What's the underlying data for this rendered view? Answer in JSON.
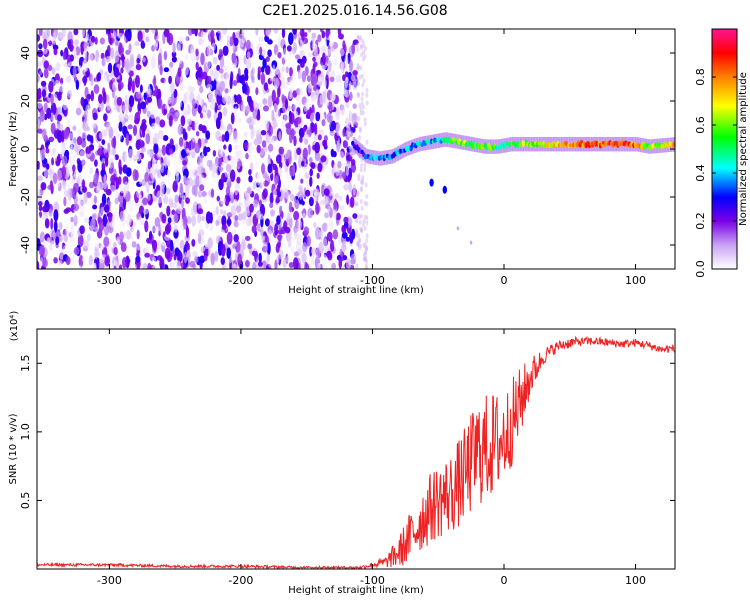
{
  "figure": {
    "title": "C2E1.2025.016.14.56.G08"
  },
  "chart_data": [
    {
      "type": "heatmap",
      "xlabel": "Height of straight line (km)",
      "ylabel": "Frequency (Hz)",
      "xlim": [
        -355,
        130
      ],
      "ylim": [
        -50,
        50
      ],
      "xticks": [
        -300,
        -200,
        -100,
        0,
        100
      ],
      "yticks": [
        -40,
        -20,
        0,
        20,
        40
      ],
      "colorbar": {
        "label": "Normalized spectral amplitude",
        "range": [
          0.0,
          1.0
        ],
        "ticks": [
          "0.0",
          "0.2",
          "0.4",
          "0.6",
          "0.8"
        ],
        "tick_values": [
          0.0,
          0.2,
          0.4,
          0.6,
          0.8
        ],
        "colors": [
          "#ffffff",
          "#7a00e6",
          "#0000ff",
          "#00ffff",
          "#00ff00",
          "#ffff00",
          "#ff8000",
          "#ff0000",
          "#ff1493"
        ]
      },
      "ridge": {
        "description_values": {
          "x": [
            -115,
            -105,
            -95,
            -85,
            -75,
            -65,
            -55,
            -45,
            -35,
            -25,
            -15,
            -5,
            5,
            20,
            40,
            60,
            80,
            100,
            110,
            130
          ],
          "y": [
            2,
            -3,
            -4,
            -3,
            0,
            2,
            3,
            4,
            3,
            2,
            1,
            1,
            2,
            2,
            2,
            2,
            2,
            2,
            1,
            2
          ],
          "amplitude": [
            0.2,
            0.3,
            0.4,
            0.35,
            0.35,
            0.4,
            0.4,
            0.45,
            0.6,
            0.55,
            0.6,
            0.5,
            0.55,
            0.6,
            0.7,
            0.8,
            0.85,
            0.8,
            0.6,
            0.75
          ]
        },
        "branch": {
          "x": [
            -55,
            -45,
            -35,
            -25
          ],
          "y": [
            -14,
            -17,
            -33,
            -39
          ]
        }
      },
      "noise_region_x": [
        -355,
        -112
      ]
    },
    {
      "type": "line",
      "xlabel": "Height of straight line (km)",
      "ylabel": "SNR (10 * v/v)",
      "multiplier_label": "(x10⁴)",
      "xlim": [
        -355,
        130
      ],
      "ylim": [
        0.0,
        1.75
      ],
      "xticks": [
        -300,
        -200,
        -100,
        0,
        100
      ],
      "yticks": [
        0.5,
        1.0,
        1.5
      ],
      "ytick_labels": [
        "0.5",
        "1.0",
        "1.5"
      ],
      "line_color": "#ee2222",
      "series": [
        {
          "x": [
            -355,
            -300,
            -250,
            -200,
            -150,
            -110,
            -100,
            -90,
            -80,
            -70,
            -60,
            -50,
            -40,
            -30,
            -20,
            -10,
            0,
            10,
            20,
            30,
            40,
            50,
            60,
            70,
            80,
            90,
            100,
            110,
            120,
            130
          ],
          "values": [
            0.03,
            0.03,
            0.02,
            0.02,
            0.01,
            0.01,
            0.03,
            0.05,
            0.12,
            0.25,
            0.4,
            0.5,
            0.55,
            0.68,
            0.85,
            0.9,
            0.95,
            1.15,
            1.4,
            1.55,
            1.62,
            1.65,
            1.66,
            1.66,
            1.65,
            1.64,
            1.65,
            1.63,
            1.6,
            1.61
          ],
          "spread": [
            0.01,
            0.01,
            0.01,
            0.01,
            0.01,
            0.01,
            0.02,
            0.04,
            0.12,
            0.2,
            0.25,
            0.28,
            0.3,
            0.35,
            0.4,
            0.4,
            0.35,
            0.3,
            0.15,
            0.06,
            0.04,
            0.04,
            0.03,
            0.03,
            0.03,
            0.03,
            0.03,
            0.03,
            0.03,
            0.03
          ]
        }
      ]
    }
  ]
}
